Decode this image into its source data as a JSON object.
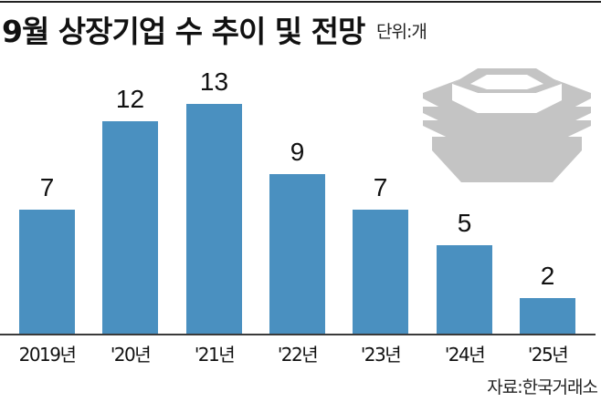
{
  "title": "9월 상장기업 수 추이 및 전망",
  "unit_label": "단위:개",
  "source": "자료:한국거래소",
  "colors": {
    "bar": "#4a90c0",
    "logo": "#c4c4c4",
    "baseline": "#3a3a3a"
  },
  "logo_icon": "krx-building-icon",
  "chart_data": {
    "type": "bar",
    "title": "9월 상장기업 수 추이 및 전망",
    "unit": "개",
    "categories": [
      "2019년",
      "'20년",
      "'21년",
      "'22년",
      "'23년",
      "'24년",
      "'25년"
    ],
    "values": [
      7,
      12,
      13,
      9,
      7,
      5,
      2
    ],
    "value_labels": [
      "7",
      "12",
      "13",
      "9",
      "7",
      "5",
      "2"
    ],
    "xlabel": "",
    "ylabel": "",
    "ylim": [
      0,
      14
    ],
    "grid": false,
    "legend": null,
    "source": "자료:한국거래소"
  }
}
